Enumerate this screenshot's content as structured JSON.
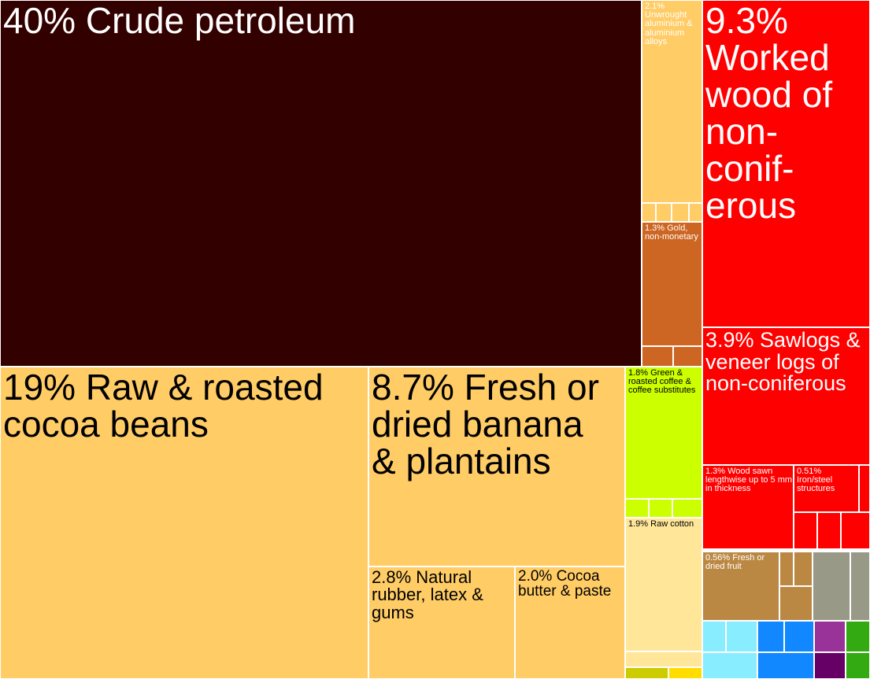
{
  "chart_data": {
    "type": "treemap",
    "unit": "% of exports",
    "items": [
      {
        "label": "40% Crude petroleum",
        "name": "Crude petroleum",
        "value": 40,
        "color": "#330000"
      },
      {
        "label": "19% Raw & roasted cocoa beans",
        "name": "Raw & roasted cocoa beans",
        "value": 19,
        "color": "#FFCC66"
      },
      {
        "label": "8.7% Fresh or dried banana & plantains",
        "name": "Fresh or dried banana & plantains",
        "value": 8.7,
        "color": "#FFCC66"
      },
      {
        "label": "9.3% Worked wood of non-conif-erous",
        "name": "Worked wood of non-coniferous",
        "value": 9.3,
        "color": "#FF0000"
      },
      {
        "label": "3.9% Sawlogs & veneer logs of non-coniferous",
        "name": "Sawlogs & veneer logs of non-coniferous",
        "value": 3.9,
        "color": "#FF0000"
      },
      {
        "label": "2.8% Natural rubber, latex & gums",
        "name": "Natural rubber, latex & gums",
        "value": 2.8,
        "color": "#FFCC66"
      },
      {
        "label": "2.0% Cocoa butter & paste",
        "name": "Cocoa butter & paste",
        "value": 2.0,
        "color": "#FFCC66"
      },
      {
        "label": "2.1% Unwrought aluminium & aluminium alloys",
        "name": "Unwrought aluminium & aluminium alloys",
        "value": 2.1,
        "color": "#FFCC66"
      },
      {
        "label": "1.9% Raw cotton",
        "name": "Raw cotton",
        "value": 1.9,
        "color": "#FFE699"
      },
      {
        "label": "1.8% Green & roasted coffee & coffee substitutes",
        "name": "Green & roasted coffee & coffee substitutes",
        "value": 1.8,
        "color": "#CCFF00"
      },
      {
        "label": "1.3% Gold, non-monetary",
        "name": "Gold, non-monetary",
        "value": 1.3,
        "color": "#CC6622"
      },
      {
        "label": "1.3% Wood sawn lengthwise up to 5 mm in thickness",
        "name": "Wood sawn lengthwise up to 5 mm in thickness",
        "value": 1.3,
        "color": "#FF0000"
      },
      {
        "label": "0.56% Fresh or dried fruit",
        "name": "Fresh or dried fruit",
        "value": 0.56,
        "color": "#BB8844"
      },
      {
        "label": "0.51% Iron/steel structures",
        "name": "Iron/steel structures",
        "value": 0.51,
        "color": "#FF0000"
      }
    ]
  }
}
